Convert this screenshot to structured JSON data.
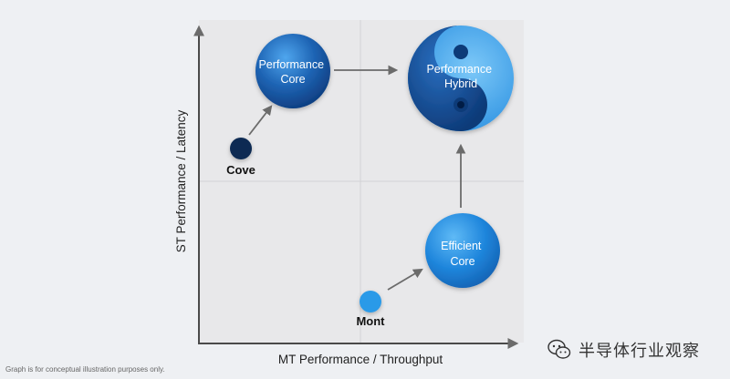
{
  "axes": {
    "x_label": "MT Performance / Throughput",
    "y_label": "ST Performance / Latency"
  },
  "nodes": {
    "performance_core": [
      "Performance",
      "Core"
    ],
    "performance_hybrid": [
      "Performance",
      "Hybrid"
    ],
    "efficient_core": [
      "Efficient",
      "Core"
    ],
    "cove": "Cove",
    "mont": "Mont"
  },
  "footnote": "Graph is for conceptual illustration purposes only.",
  "watermark": {
    "text": "半导体行业观察",
    "icon": "wechat-icon"
  },
  "colors": {
    "background": "#eef0f3",
    "plot_area": "#e8e8ea",
    "axis": "#4a4a4a",
    "arrow": "#6b6b6b",
    "core_blue": "#1e64b4",
    "dark_navy": "#0a2a52",
    "light_blue": "#2a9ae8"
  }
}
